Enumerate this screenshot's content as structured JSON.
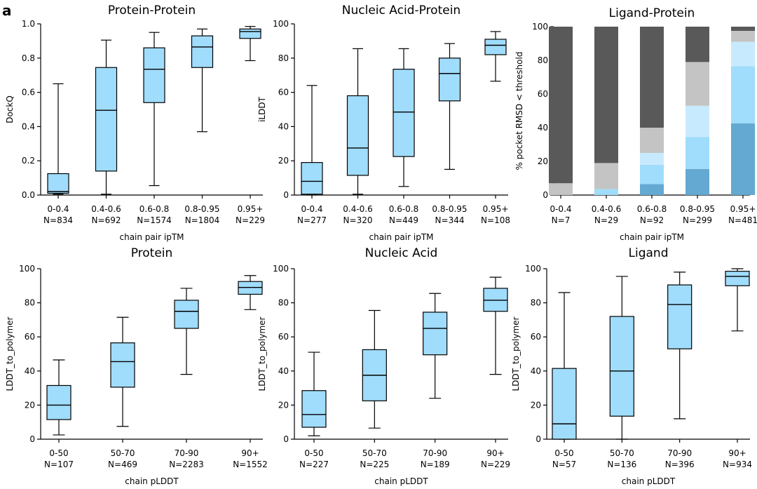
{
  "panel_label": "a",
  "chart_data": [
    {
      "type": "box",
      "title": "Protein-Protein",
      "ylabel": "DockQ",
      "xlabel": "chain pair ipTM",
      "ylim": [
        0,
        1.0
      ],
      "yticks": [
        "0.0",
        "0.2",
        "0.4",
        "0.6",
        "0.8",
        "1.0"
      ],
      "categories": [
        "0-0.4",
        "0.4-0.6",
        "0.6-0.8",
        "0.8-0.95",
        "0.95+"
      ],
      "counts": [
        "N=834",
        "N=692",
        "N=1574",
        "N=1804",
        "N=229"
      ],
      "boxes": [
        {
          "whislo": 0.005,
          "q1": 0.01,
          "med": 0.02,
          "q3": 0.125,
          "whishi": 0.65
        },
        {
          "whislo": 0.005,
          "q1": 0.14,
          "med": 0.495,
          "q3": 0.745,
          "whishi": 0.905
        },
        {
          "whislo": 0.055,
          "q1": 0.54,
          "med": 0.735,
          "q3": 0.86,
          "whishi": 0.95
        },
        {
          "whislo": 0.37,
          "q1": 0.745,
          "med": 0.865,
          "q3": 0.93,
          "whishi": 0.97
        },
        {
          "whislo": 0.785,
          "q1": 0.915,
          "med": 0.955,
          "q3": 0.97,
          "whishi": 0.985
        }
      ]
    },
    {
      "type": "box",
      "title": "Nucleic Acid-Protein",
      "ylabel": "iLDDT",
      "xlabel": "chain pair ipTM",
      "ylim": [
        0,
        100
      ],
      "yticks": [
        "0",
        "20",
        "40",
        "60",
        "80",
        "100"
      ],
      "categories": [
        "0-0.4",
        "0.4-0.6",
        "0.6-0.8",
        "0.8-0.95",
        "0.95+"
      ],
      "counts": [
        "N=277",
        "N=320",
        "N=449",
        "N=344",
        "N=108"
      ],
      "boxes": [
        {
          "whislo": 0,
          "q1": 0.5,
          "med": 8,
          "q3": 19,
          "whishi": 64
        },
        {
          "whislo": 0.5,
          "q1": 11.5,
          "med": 27.5,
          "q3": 58,
          "whishi": 85.5
        },
        {
          "whislo": 5,
          "q1": 22.5,
          "med": 48.5,
          "q3": 73.5,
          "whishi": 85.5
        },
        {
          "whislo": 15,
          "q1": 55,
          "med": 71,
          "q3": 80,
          "whishi": 88.5
        },
        {
          "whislo": 66.5,
          "q1": 82,
          "med": 87.5,
          "q3": 91,
          "whishi": 95.5
        }
      ]
    },
    {
      "type": "bar",
      "stacked": true,
      "title": "Ligand-Protein",
      "ylabel": "% pocket RMSD < threshold",
      "xlabel": "chain pair ipTM",
      "ylim": [
        0,
        100
      ],
      "yticks": [
        "0",
        "20",
        "40",
        "60",
        "80",
        "100"
      ],
      "categories": [
        "0-0.4",
        "0.4-0.6",
        "0.6-0.8",
        "0.8-0.95",
        "0.95+"
      ],
      "counts": [
        "N=7",
        "N=29",
        "N=92",
        "N=299",
        "N=481"
      ],
      "series": [
        {
          "color": "#64a9d1",
          "values": [
            0,
            0,
            6.5,
            15.5,
            42.5
          ]
        },
        {
          "color": "#a0dcfb",
          "values": [
            0,
            3.5,
            11.5,
            19,
            34
          ]
        },
        {
          "color": "#c8eafe",
          "values": [
            0,
            0,
            7,
            18.5,
            14.5
          ]
        },
        {
          "color": "#c4c4c4",
          "values": [
            7,
            15.5,
            15,
            26,
            6.5
          ]
        },
        {
          "color": "#595959",
          "values": [
            93,
            81,
            60,
            21,
            2.5
          ]
        }
      ]
    },
    {
      "type": "box",
      "title": "Protein",
      "ylabel": "LDDT_to_polymer",
      "xlabel": "chain pLDDT",
      "ylim": [
        0,
        100
      ],
      "yticks": [
        "0",
        "20",
        "40",
        "60",
        "80",
        "100"
      ],
      "categories": [
        "0-50",
        "50-70",
        "70-90",
        "90+"
      ],
      "counts": [
        "N=107",
        "N=469",
        "N=2283",
        "N=1552"
      ],
      "boxes": [
        {
          "whislo": 2.5,
          "q1": 11.5,
          "med": 20,
          "q3": 31.5,
          "whishi": 46.5
        },
        {
          "whislo": 7.5,
          "q1": 30.5,
          "med": 45.5,
          "q3": 56.5,
          "whishi": 71.5
        },
        {
          "whislo": 38,
          "q1": 65,
          "med": 75,
          "q3": 81.5,
          "whishi": 88.5
        },
        {
          "whislo": 76,
          "q1": 85,
          "med": 89,
          "q3": 92.5,
          "whishi": 96
        }
      ]
    },
    {
      "type": "box",
      "title": "Nucleic Acid",
      "ylabel": "LDDT_to_polymer",
      "xlabel": "chain pLDDT",
      "ylim": [
        0,
        100
      ],
      "yticks": [
        "0",
        "20",
        "40",
        "60",
        "80",
        "100"
      ],
      "categories": [
        "0-50",
        "50-70",
        "70-90",
        "90+"
      ],
      "counts": [
        "N=227",
        "N=225",
        "N=189",
        "N=229"
      ],
      "boxes": [
        {
          "whislo": 2,
          "q1": 7,
          "med": 14.5,
          "q3": 28.5,
          "whishi": 51
        },
        {
          "whislo": 6.5,
          "q1": 22.5,
          "med": 37.5,
          "q3": 52.5,
          "whishi": 75.5
        },
        {
          "whislo": 24,
          "q1": 49.5,
          "med": 65,
          "q3": 74.5,
          "whishi": 85.5
        },
        {
          "whislo": 38,
          "q1": 75,
          "med": 81.5,
          "q3": 88.5,
          "whishi": 95
        }
      ]
    },
    {
      "type": "box",
      "title": "Ligand",
      "ylabel": "LDDT_to_polymer",
      "xlabel": "chain pLDDT",
      "ylim": [
        0,
        100
      ],
      "yticks": [
        "0",
        "20",
        "40",
        "60",
        "80",
        "100"
      ],
      "categories": [
        "0-50",
        "50-70",
        "70-90",
        "90+"
      ],
      "counts": [
        "N=57",
        "N=136",
        "N=396",
        "N=934"
      ],
      "boxes": [
        {
          "whislo": 0,
          "q1": 0,
          "med": 9,
          "q3": 41.5,
          "whishi": 86
        },
        {
          "whislo": 0,
          "q1": 13.5,
          "med": 40,
          "q3": 72,
          "whishi": 95.5
        },
        {
          "whislo": 12,
          "q1": 53,
          "med": 79,
          "q3": 90.5,
          "whishi": 98
        },
        {
          "whislo": 63.5,
          "q1": 90,
          "med": 95.5,
          "q3": 98.5,
          "whishi": 100
        }
      ]
    }
  ],
  "colors": {
    "box_fill": "#a0dcfb",
    "stroke": "#000000"
  }
}
